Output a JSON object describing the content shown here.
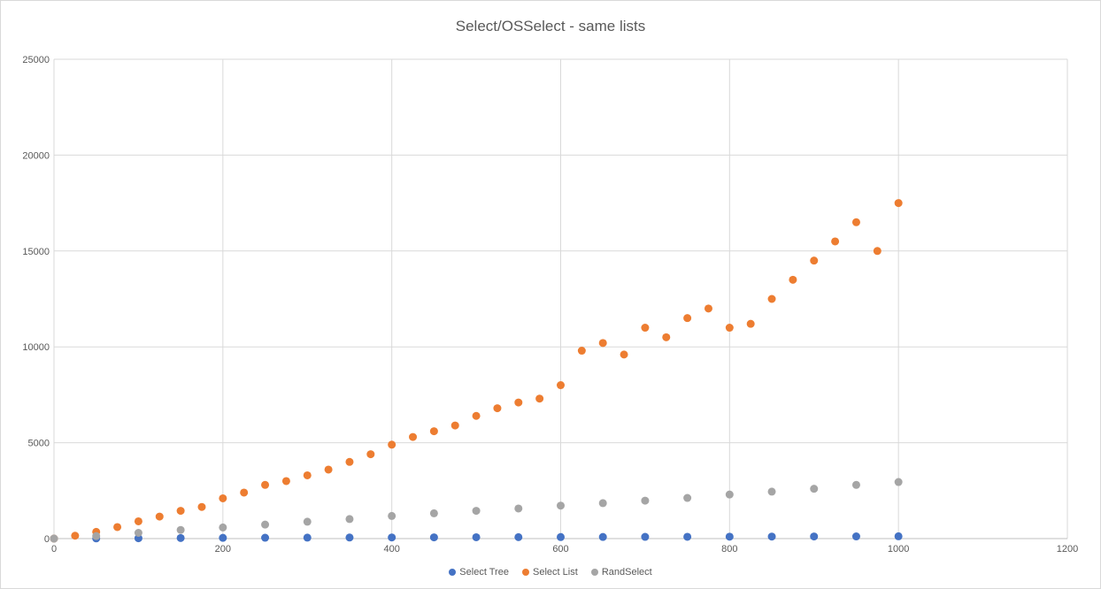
{
  "chart_data": {
    "type": "scatter",
    "title": "Select/OSSelect - same lists",
    "xlabel": "",
    "ylabel": "",
    "xlim": [
      0,
      1200
    ],
    "ylim": [
      0,
      25000
    ],
    "x_ticks": [
      0,
      200,
      400,
      600,
      800,
      1000,
      1200
    ],
    "y_ticks": [
      0,
      5000,
      10000,
      15000,
      20000,
      25000
    ],
    "grid": true,
    "legend_position": "bottom",
    "series": [
      {
        "name": "Select Tree",
        "color": "#4472c4",
        "x": [
          0,
          50,
          100,
          150,
          200,
          250,
          300,
          350,
          400,
          450,
          500,
          550,
          600,
          650,
          700,
          750,
          800,
          850,
          900,
          950,
          1000
        ],
        "y": [
          0,
          10,
          20,
          30,
          40,
          45,
          50,
          55,
          60,
          65,
          70,
          75,
          80,
          85,
          90,
          95,
          100,
          105,
          110,
          115,
          120
        ]
      },
      {
        "name": "Select List",
        "color": "#ed7d31",
        "x": [
          0,
          25,
          50,
          75,
          100,
          125,
          150,
          175,
          200,
          225,
          250,
          275,
          300,
          325,
          350,
          375,
          400,
          425,
          450,
          475,
          500,
          525,
          550,
          575,
          600,
          625,
          650,
          675,
          700,
          725,
          750,
          775,
          800,
          825,
          850,
          875,
          900,
          925,
          950,
          975,
          1000
        ],
        "y": [
          0,
          150,
          350,
          600,
          900,
          1150,
          1450,
          1650,
          2100,
          2400,
          2800,
          3000,
          3300,
          3600,
          4000,
          4400,
          4900,
          5300,
          5600,
          5900,
          6400,
          6800,
          7100,
          7300,
          8000,
          9800,
          10200,
          9600,
          11000,
          10500,
          11500,
          12000,
          11000,
          11200,
          12500,
          13500,
          14500,
          15500,
          16500,
          15000,
          17500
        ]
      },
      {
        "name": "RandSelect",
        "color": "#a5a5a5",
        "x": [
          0,
          50,
          100,
          150,
          200,
          250,
          300,
          350,
          400,
          450,
          500,
          550,
          600,
          650,
          700,
          750,
          800,
          850,
          900,
          950,
          1000
        ],
        "y": [
          0,
          130,
          300,
          450,
          580,
          730,
          880,
          1020,
          1180,
          1320,
          1450,
          1570,
          1720,
          1850,
          1980,
          2120,
          2300,
          2450,
          2600,
          2800,
          2950
        ]
      }
    ]
  }
}
